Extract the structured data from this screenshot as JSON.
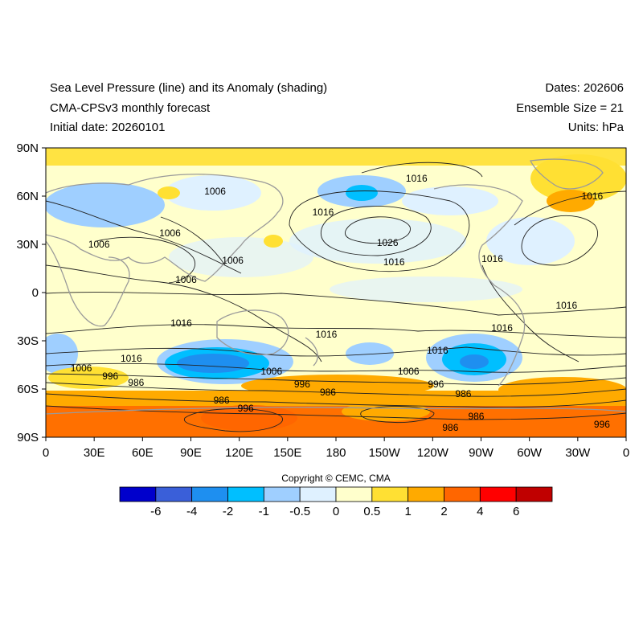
{
  "header": {
    "title_line1": "Sea Level Pressure (line) and its Anomaly (shading)",
    "title_line2": "CMA-CPSv3 monthly forecast",
    "initial_date": "Initial date: 20260101",
    "dates": "Dates: 202606",
    "ensemble": "Ensemble Size = 21",
    "units": "Units: hPa"
  },
  "map": {
    "lat_ticks": [
      "90N",
      "60N",
      "30N",
      "0",
      "30S",
      "60S",
      "90S"
    ],
    "lon_ticks": [
      "0",
      "30E",
      "60E",
      "90E",
      "120E",
      "150E",
      "180",
      "150W",
      "120W",
      "90W",
      "60W",
      "30W",
      "0"
    ],
    "contour_labels": [
      {
        "text": "1016",
        "lon": 230,
        "lat": 71
      },
      {
        "text": "1006",
        "lon": 105,
        "lat": 63
      },
      {
        "text": "1016",
        "lon": 172,
        "lat": 50
      },
      {
        "text": "1016",
        "lon": 339,
        "lat": 60
      },
      {
        "text": "1006",
        "lon": 33,
        "lat": 30
      },
      {
        "text": "1006",
        "lon": 77,
        "lat": 37
      },
      {
        "text": "1006",
        "lon": 116,
        "lat": 20
      },
      {
        "text": "1026",
        "lon": 212,
        "lat": 31
      },
      {
        "text": "1016",
        "lon": 216,
        "lat": 19
      },
      {
        "text": "1016",
        "lon": 277,
        "lat": 21
      },
      {
        "text": "1006",
        "lon": 87,
        "lat": 8
      },
      {
        "text": "1016",
        "lon": 323,
        "lat": -8
      },
      {
        "text": "1016",
        "lon": 84,
        "lat": -19
      },
      {
        "text": "1016",
        "lon": 174,
        "lat": -26
      },
      {
        "text": "1016",
        "lon": 283,
        "lat": -22
      },
      {
        "text": "1016",
        "lon": 243,
        "lat": -36
      },
      {
        "text": "1016",
        "lon": 53,
        "lat": -41
      },
      {
        "text": "1006",
        "lon": 22,
        "lat": -47
      },
      {
        "text": "996",
        "lon": 40,
        "lat": -52
      },
      {
        "text": "986",
        "lon": 56,
        "lat": -56
      },
      {
        "text": "1006",
        "lon": 140,
        "lat": -49
      },
      {
        "text": "996",
        "lon": 159,
        "lat": -57
      },
      {
        "text": "986",
        "lon": 175,
        "lat": -62
      },
      {
        "text": "1006",
        "lon": 225,
        "lat": -49
      },
      {
        "text": "996",
        "lon": 242,
        "lat": -57
      },
      {
        "text": "986",
        "lon": 259,
        "lat": -63
      },
      {
        "text": "986",
        "lon": 109,
        "lat": -67
      },
      {
        "text": "996",
        "lon": 124,
        "lat": -72
      },
      {
        "text": "986",
        "lon": 267,
        "lat": -77
      },
      {
        "text": "986",
        "lon": 251,
        "lat": -84
      },
      {
        "text": "996",
        "lon": 345,
        "lat": -82
      }
    ]
  },
  "colorbar": {
    "colors": [
      "#0000cc",
      "#3a5fd9",
      "#1e8ff0",
      "#00bfff",
      "#9fcfff",
      "#dff1ff",
      "#ffffcc",
      "#ffe033",
      "#ffaa00",
      "#ff6600",
      "#ff0000",
      "#c00000"
    ],
    "labels": [
      "-6",
      "-4",
      "-2",
      "-1",
      "-0.5",
      "0",
      "0.5",
      "1",
      "2",
      "4",
      "6"
    ]
  },
  "copyright": "Copyright © CEMC, CMA"
}
